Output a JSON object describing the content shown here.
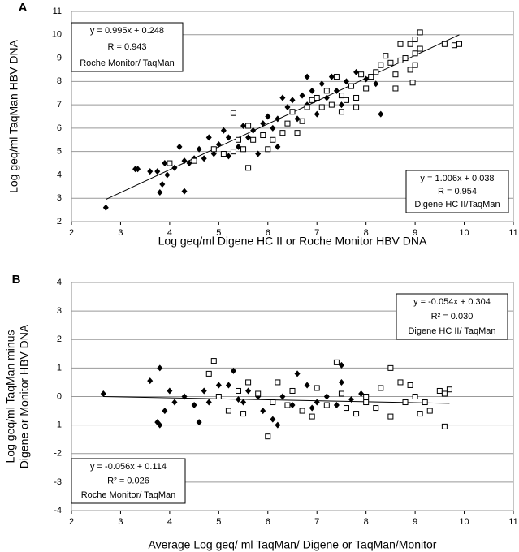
{
  "chart_data": [
    {
      "type": "scatter",
      "panel_label": "A",
      "xlabel": "Log geq/ml Digene HC II or Roche Monitor HBV DNA",
      "ylabel": [
        "Log geq/ml TaqMan HBV DNA"
      ],
      "xlim": [
        2,
        11
      ],
      "xticks": [
        2,
        3,
        4,
        5,
        6,
        7,
        8,
        9,
        10,
        11
      ],
      "ylim": [
        2,
        11
      ],
      "yticks": [
        2,
        3,
        4,
        5,
        6,
        7,
        8,
        9,
        10,
        11
      ],
      "grid": true,
      "annotations": [
        [
          "y = 0.995x + 0.248",
          "R = 0.943",
          "Roche Monitor/ TaqMan"
        ],
        [
          "y = 1.006x + 0.038",
          "R = 0.954",
          "Digene HC II/TaqMan"
        ]
      ],
      "series": [
        {
          "marker": "diamond",
          "color": "#000000",
          "x": [
            2.7,
            3.3,
            3.35,
            3.6,
            3.75,
            3.8,
            3.85,
            3.9,
            3.95,
            4.1,
            4.3,
            4.3,
            4.2,
            4.4,
            4.6,
            4.7,
            4.9,
            4.8,
            5.0,
            5.2,
            5.2,
            5.4,
            5.5,
            5.6,
            5.7,
            5.8,
            5.9,
            6.0,
            6.1,
            6.2,
            6.3,
            6.4,
            6.5,
            6.6,
            6.7,
            6.8,
            6.8,
            6.9,
            7.0,
            7.1,
            7.2,
            7.3,
            7.4,
            7.6,
            7.8,
            8.0,
            8.2,
            8.3,
            7.5,
            6.2,
            5.1,
            4.5
          ],
          "values": [
            2.6,
            4.25,
            4.25,
            4.15,
            4.15,
            3.25,
            3.6,
            4.5,
            4.0,
            4.3,
            3.3,
            4.6,
            5.2,
            4.5,
            5.1,
            4.7,
            4.9,
            5.6,
            5.3,
            5.6,
            4.8,
            5.2,
            6.1,
            5.6,
            5.9,
            4.9,
            6.2,
            6.5,
            6.0,
            6.4,
            7.3,
            6.9,
            7.2,
            6.4,
            7.4,
            7.0,
            8.2,
            7.6,
            6.6,
            7.9,
            7.3,
            8.2,
            7.6,
            8.0,
            8.4,
            8.1,
            7.9,
            6.6,
            7.0,
            5.2,
            5.9,
            4.7
          ]
        },
        {
          "marker": "square",
          "color": "#000000",
          "x": [
            4.0,
            4.5,
            4.9,
            5.1,
            5.3,
            5.4,
            5.5,
            5.6,
            5.6,
            5.7,
            5.3,
            5.9,
            6.1,
            6.3,
            6.5,
            6.6,
            6.7,
            6.8,
            6.9,
            7.0,
            7.1,
            7.2,
            7.3,
            7.4,
            7.5,
            7.5,
            7.6,
            7.7,
            7.8,
            7.9,
            8.0,
            7.8,
            8.1,
            8.2,
            8.3,
            8.4,
            8.5,
            8.6,
            8.7,
            8.8,
            8.9,
            8.9,
            9.0,
            9.0,
            9.1,
            9.1,
            9.0,
            9.6,
            9.8,
            9.9,
            8.95,
            8.6,
            8.7,
            6.4,
            6.0
          ],
          "values": [
            4.5,
            4.6,
            5.1,
            4.9,
            6.65,
            5.5,
            5.1,
            4.3,
            6.1,
            5.5,
            5.0,
            5.7,
            5.5,
            5.8,
            6.7,
            5.8,
            6.3,
            6.9,
            7.2,
            7.3,
            6.9,
            7.6,
            7.0,
            8.2,
            7.4,
            6.7,
            7.2,
            7.8,
            7.3,
            8.3,
            7.7,
            6.9,
            8.2,
            8.4,
            8.7,
            9.1,
            8.8,
            8.3,
            8.9,
            9.0,
            8.5,
            9.6,
            9.2,
            8.7,
            9.4,
            10.1,
            9.8,
            9.6,
            9.55,
            9.6,
            7.95,
            7.7,
            9.6,
            6.2,
            5.1
          ]
        }
      ],
      "lines": [
        {
          "x": [
            2.7,
            9.9
          ],
          "values": [
            2.95,
            10.0
          ]
        }
      ]
    },
    {
      "type": "scatter",
      "panel_label": "B",
      "xlabel": "Average Log geq/ ml TaqMan/ Digene or TaqMan/Monitor",
      "ylabel": [
        "Log geq/ml TaqMan minus",
        "Digene or Monitor HBV DNA"
      ],
      "xlim": [
        2,
        11
      ],
      "xticks": [
        2,
        3,
        4,
        5,
        6,
        7,
        8,
        9,
        10,
        11
      ],
      "ylim": [
        -4,
        4
      ],
      "yticks": [
        -4,
        -3,
        -2,
        -1,
        0,
        1,
        2,
        3,
        4
      ],
      "grid": true,
      "annotations": [
        [
          "y = -0.054x + 0.304",
          "R² = 0.030",
          "Digene HC II/ TaqMan"
        ],
        [
          "y = -0.056x + 0.114",
          "R² = 0.026",
          "Roche Monitor/ TaqMan"
        ]
      ],
      "series": [
        {
          "marker": "diamond",
          "color": "#000000",
          "x": [
            2.65,
            3.6,
            3.8,
            3.75,
            3.8,
            3.9,
            4.0,
            4.1,
            4.3,
            4.5,
            4.6,
            4.7,
            4.8,
            5.0,
            5.2,
            5.3,
            5.4,
            5.6,
            5.8,
            5.9,
            6.1,
            6.2,
            6.3,
            6.5,
            6.6,
            6.8,
            7.0,
            7.2,
            7.4,
            7.5,
            7.5,
            7.7,
            7.9,
            5.5,
            6.9
          ],
          "values": [
            0.1,
            0.55,
            1.0,
            -0.9,
            -1.0,
            -0.5,
            0.2,
            -0.2,
            0.0,
            -0.3,
            -0.9,
            0.2,
            -0.2,
            0.4,
            0.4,
            0.9,
            -0.1,
            0.2,
            0.0,
            -0.5,
            -0.8,
            -1.0,
            0.0,
            -0.3,
            0.8,
            0.4,
            -0.2,
            0.0,
            -0.3,
            1.1,
            0.5,
            -0.1,
            0.1,
            -0.2,
            -0.4
          ]
        },
        {
          "marker": "square",
          "color": "#000000",
          "x": [
            4.9,
            4.8,
            5.0,
            5.2,
            5.4,
            5.5,
            5.6,
            5.8,
            6.0,
            6.1,
            6.2,
            6.4,
            6.5,
            6.7,
            6.9,
            7.0,
            7.2,
            7.4,
            7.5,
            7.6,
            7.8,
            8.0,
            8.2,
            8.3,
            8.5,
            8.5,
            8.7,
            8.8,
            9.0,
            9.1,
            9.2,
            9.3,
            9.5,
            9.6,
            9.7,
            9.6,
            8.9,
            8.0
          ],
          "values": [
            1.25,
            0.8,
            0.0,
            -0.5,
            0.2,
            -0.6,
            0.5,
            0.1,
            -1.4,
            -0.2,
            0.5,
            -0.3,
            0.2,
            -0.5,
            -0.7,
            0.3,
            -0.3,
            1.2,
            0.1,
            -0.4,
            -0.6,
            -0.2,
            -0.4,
            0.3,
            1.0,
            -0.7,
            0.5,
            -0.2,
            0.0,
            -0.6,
            -0.2,
            -0.5,
            0.2,
            -1.05,
            0.25,
            0.1,
            0.4,
            0.0
          ]
        }
      ],
      "lines": [
        {
          "x": [
            2.65,
            9.7
          ],
          "values": [
            0.0,
            -0.24
          ]
        }
      ]
    }
  ]
}
